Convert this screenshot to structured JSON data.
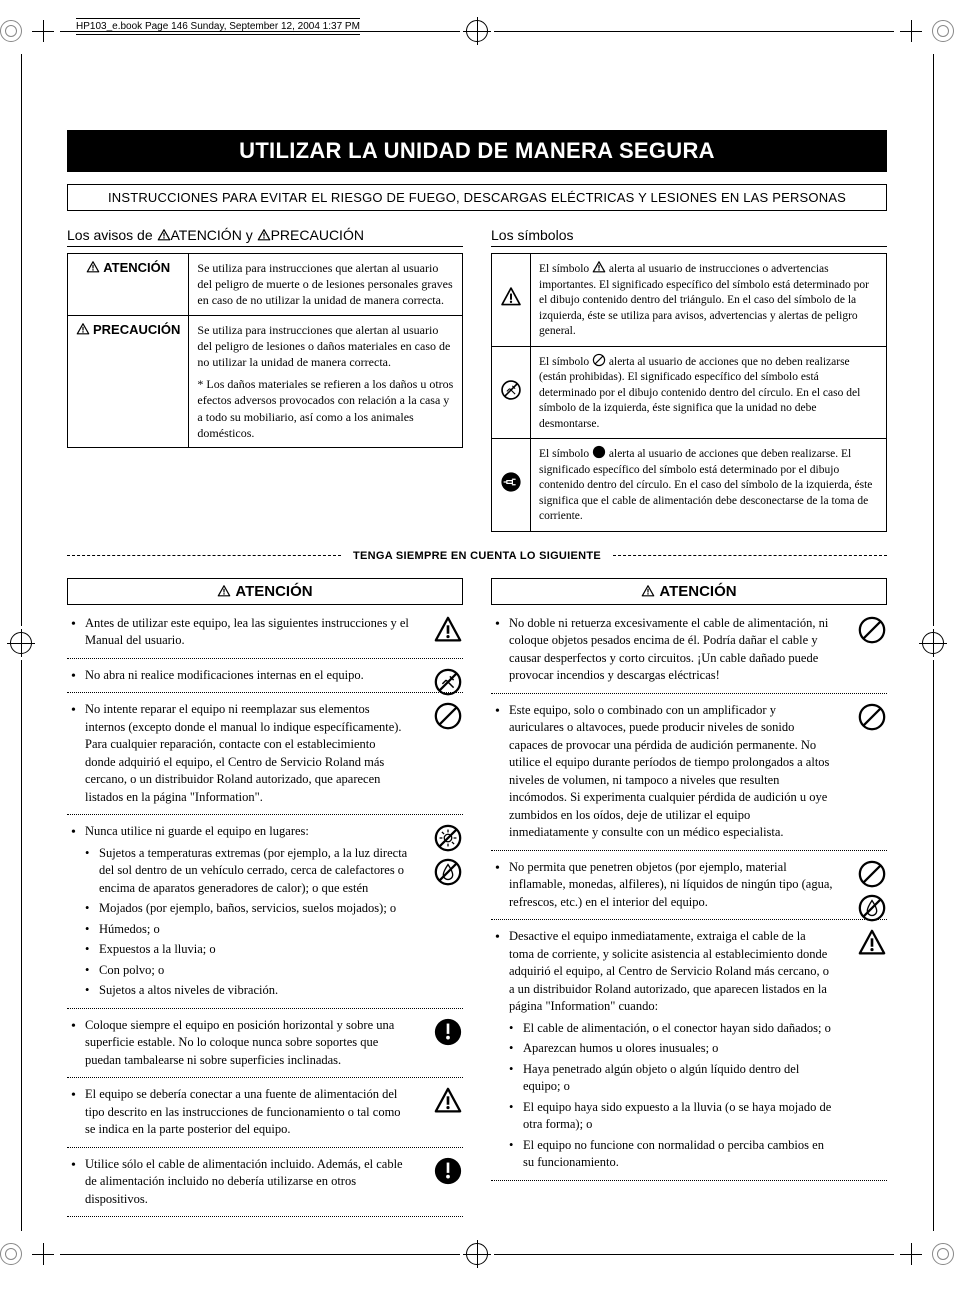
{
  "meta": {
    "header_line": "HP103_e.book  Page 146  Sunday, September 12, 2004  1:37 PM"
  },
  "banner": {
    "title": "UTILIZAR LA UNIDAD DE MANERA SEGURA",
    "subtitle": "INSTRUCCIONES PARA EVITAR EL RIESGO DE FUEGO, DESCARGAS ELÉCTRICAS Y LESIONES EN LAS PERSONAS"
  },
  "avisos": {
    "head_prefix": "Los avisos de ",
    "atencion_word": "ATENCIÓN",
    "y_word": " y ",
    "precaucion_word": "PRECAUCIÓN",
    "rows": [
      {
        "label": "ATENCIÓN",
        "text": "Se utiliza para instrucciones que alertan al usuario del peligro de muerte o de lesiones personales graves en caso de no utilizar la unidad de manera correcta."
      },
      {
        "label": "PRECAUCIÓN",
        "text": "Se utiliza para instrucciones que alertan al usuario del peligro de lesiones o daños materiales en caso de no utilizar la unidad de manera correcta.",
        "note": "* Los daños materiales se refieren a los daños u otros efectos adversos provocados con relación a la casa y a todo su mobiliario, así como a los animales domésticos."
      }
    ]
  },
  "simbolos": {
    "head": "Los símbolos",
    "rows": [
      {
        "icon": "triangle-warn",
        "pre": "El símbolo ",
        "post": " alerta al usuario de instrucciones o advertencias importantes. El significado específico del símbolo está determinado por el dibujo contenido dentro del triángulo. En el caso del símbolo de la izquierda, éste se utiliza para avisos, advertencias y alertas de peligro general."
      },
      {
        "icon": "circle-no",
        "pre": "El símbolo ",
        "post": " alerta al usuario de acciones que no deben realizarse (están prohibidas). El significado específico del símbolo está determinado por el dibujo contenido dentro del círculo. En el caso del símbolo de la izquierda, éste significa que la unidad no debe desmontarse."
      },
      {
        "icon": "circle-do",
        "pre": "El símbolo ",
        "post": " alerta al usuario de acciones que deben realizarse. El significado específico del símbolo está determinado por el dibujo contenido dentro del círculo. En el caso del símbolo de la izquierda, éste significa que el cable de alimentación debe desconectarse de la toma de corriente."
      }
    ]
  },
  "divider_label": "TENGA SIEMPRE EN CUENTA LO SIGUIENTE",
  "atencion_header": "ATENCIÓN",
  "left_items": [
    {
      "text": "Antes de utilizar este equipo, lea las siguientes instrucciones y el Manual del usuario.",
      "icons": [
        "triangle-warn"
      ]
    },
    {
      "text": "No abra ni realice modificaciones internas en el equipo.",
      "icons": [
        "circle-no-disassemble"
      ]
    },
    {
      "text": "No intente reparar el equipo ni reemplazar sus elementos internos (excepto donde el manual lo indique específicamente). Para cualquier reparación, contacte con el establecimiento donde adquirió el equipo, el Centro de Servicio Roland más cercano, o un distribuidor Roland autorizado, que aparecen listados en la página \"Information\".",
      "icons": [
        "circle-no"
      ]
    },
    {
      "text": "Nunca utilice ni guarde el equipo en lugares:",
      "icons": [
        "circle-no-sun",
        "circle-no-water"
      ],
      "sub": [
        "Sujetos a temperaturas extremas (por ejemplo, a la luz directa del sol dentro de un vehículo cerrado, cerca de calefactores o encima de aparatos generadores de calor); o que estén",
        "Mojados (por ejemplo, baños, servicios, suelos mojados); o",
        "Húmedos; o",
        "Expuestos a la lluvia; o",
        "Con polvo; o",
        "Sujetos a altos niveles de vibración."
      ]
    },
    {
      "text": "Coloque siempre el equipo en posición horizontal y sobre una superficie estable. No lo coloque nunca sobre soportes que puedan tambalearse ni sobre superficies inclinadas.",
      "icons": [
        "circle-do"
      ]
    },
    {
      "text": "El equipo se debería conectar a una fuente de alimentación del tipo descrito en las instrucciones de funcionamiento o tal como se indica en la parte posterior del equipo.",
      "icons": [
        "triangle-warn"
      ]
    },
    {
      "text": "Utilice sólo el cable de alimentación incluido. Además, el cable de alimentación incluido no debería utilizarse en otros dispositivos.",
      "icons": [
        "circle-do"
      ]
    }
  ],
  "right_items": [
    {
      "text": "No doble ni retuerza excesivamente el cable de alimentación, ni coloque objetos pesados encima de él. Podría dañar el cable y causar desperfectos y corto circuitos. ¡Un cable dañado puede provocar incendios y descargas eléctricas!",
      "icons": [
        "circle-no"
      ]
    },
    {
      "text": "Este equipo, solo o combinado con un amplificador y auriculares o altavoces, puede producir niveles de sonido capaces de provocar una pérdida de audición permanente. No utilice el equipo durante períodos de tiempo prolongados a altos niveles de volumen, ni tampoco a niveles que resulten incómodos. Si experimenta cualquier pérdida de audición u oye zumbidos en los oídos, deje de utilizar el equipo inmediatamente y consulte con un médico especialista.",
      "icons": [
        "circle-no"
      ]
    },
    {
      "text": "No permita que penetren objetos (por ejemplo, material inflamable, monedas, alfileres), ni líquidos de ningún tipo (agua, refrescos, etc.) en el interior del equipo.",
      "icons": [
        "circle-no",
        "circle-no-water"
      ]
    },
    {
      "text": "Desactive el equipo inmediatamente, extraiga el cable de la toma de corriente, y solicite asistencia al establecimiento donde adquirió el equipo, al Centro de Servicio Roland más cercano, o a un distribuidor Roland autorizado, que aparecen listados en la página \"Information\" cuando:",
      "icons": [
        "triangle-warn"
      ],
      "sub": [
        "El cable de alimentación, o el conector hayan sido dañados; o",
        "Aparezcan humos u olores inusuales; o",
        "Haya penetrado algún objeto o algún líquido dentro del equipo; o",
        "El equipo haya sido expuesto a la lluvia (o se haya mojado de otra forma); o",
        "El equipo no funcione con normalidad o perciba cambios en su funcionamiento."
      ]
    }
  ],
  "colors": {
    "text": "#000000",
    "bg": "#ffffff",
    "banner_bg": "#000000",
    "banner_fg": "#ffffff",
    "crop_grey": "#888888"
  },
  "icons": {
    "triangle-warn": "triangle-warn",
    "circle-no": "circle-no",
    "circle-no-disassemble": "circle-no-disassemble",
    "circle-no-sun": "circle-no-sun",
    "circle-no-water": "circle-no-water",
    "circle-do": "circle-do",
    "circle-do-plug": "circle-do-plug"
  }
}
